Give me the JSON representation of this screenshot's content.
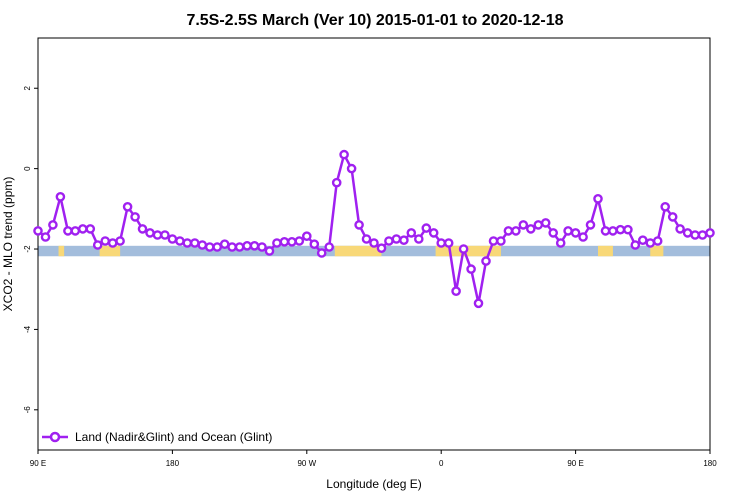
{
  "chart_data": {
    "type": "line",
    "title": "7.5S-2.5S March (Ver 10)   2015-01-01 to 2020-12-18",
    "xlabel": "Longitude (deg E)",
    "ylabel": "XCO2 - MLO trend (ppm)",
    "xlim": [
      90,
      450
    ],
    "ylim": [
      -7.0,
      3.25
    ],
    "x_ticks": [
      {
        "value": 90,
        "label": "90 E"
      },
      {
        "value": 162,
        "label": "180"
      },
      {
        "value": 234,
        "label": "90 W"
      },
      {
        "value": 306,
        "label": "0"
      },
      {
        "value": 378,
        "label": "90 E"
      },
      {
        "value": 450,
        "label": "180"
      }
    ],
    "y_ticks": [
      {
        "value": 2,
        "label": "2"
      },
      {
        "value": 0,
        "label": "0"
      },
      {
        "value": -2,
        "label": "-2"
      },
      {
        "value": -4,
        "label": "-4"
      },
      {
        "value": -6,
        "label": "-6"
      }
    ],
    "grid": false,
    "legend_position": "bottom-left",
    "colors": {
      "series": "#a020f0",
      "ocean": "#a3bddc",
      "land": "#f8d878"
    },
    "map_strip": {
      "y_top": -1.92,
      "y_bottom": -2.18,
      "land_spans": [
        [
          101,
          104
        ],
        [
          123,
          134
        ],
        [
          249,
          274
        ],
        [
          303,
          338
        ],
        [
          390,
          398
        ],
        [
          418,
          425
        ]
      ]
    },
    "series": [
      {
        "name": "Land (Nadir&Glint) and Ocean (Glint)",
        "x": [
          90,
          94,
          98,
          102,
          106,
          110,
          114,
          118,
          122,
          126,
          130,
          134,
          138,
          142,
          146,
          150,
          154,
          158,
          162,
          166,
          170,
          174,
          178,
          182,
          186,
          190,
          194,
          198,
          202,
          206,
          210,
          214,
          218,
          222,
          226,
          230,
          234,
          238,
          242,
          246,
          250,
          254,
          258,
          262,
          266,
          270,
          274,
          278,
          282,
          286,
          290,
          294,
          298,
          302,
          306,
          310,
          314,
          318,
          322,
          326,
          330,
          334,
          338,
          342,
          346,
          350,
          354,
          358,
          362,
          366,
          370,
          374,
          378,
          382,
          386,
          390,
          394,
          398,
          402,
          406,
          410,
          414,
          418,
          422,
          426,
          430,
          434,
          438,
          442,
          446,
          450
        ],
        "y": [
          -1.55,
          -1.7,
          -1.4,
          -0.7,
          -1.55,
          -1.55,
          -1.5,
          -1.5,
          -1.9,
          -1.8,
          -1.85,
          -1.8,
          -0.95,
          -1.2,
          -1.5,
          -1.6,
          -1.65,
          -1.65,
          -1.75,
          -1.8,
          -1.85,
          -1.85,
          -1.9,
          -1.95,
          -1.95,
          -1.88,
          -1.95,
          -1.95,
          -1.92,
          -1.92,
          -1.95,
          -2.05,
          -1.85,
          -1.82,
          -1.82,
          -1.8,
          -1.68,
          -1.88,
          -2.1,
          -1.95,
          -0.35,
          0.35,
          0.0,
          -1.4,
          -1.75,
          -1.85,
          -1.98,
          -1.8,
          -1.75,
          -1.78,
          -1.6,
          -1.75,
          -1.48,
          -1.6,
          -1.85,
          -1.85,
          -3.05,
          -2.0,
          -2.5,
          -3.35,
          -2.3,
          -1.8,
          -1.8,
          -1.55,
          -1.55,
          -1.4,
          -1.5,
          -1.4,
          -1.35,
          -1.6,
          -1.85,
          -1.55,
          -1.6,
          -1.7,
          -1.4,
          -0.75,
          -1.55,
          -1.55,
          -1.52,
          -1.52,
          -1.9,
          -1.78,
          -1.85,
          -1.8,
          -0.95,
          -1.2,
          -1.5,
          -1.6,
          -1.65,
          -1.65,
          -1.6
        ]
      }
    ]
  }
}
